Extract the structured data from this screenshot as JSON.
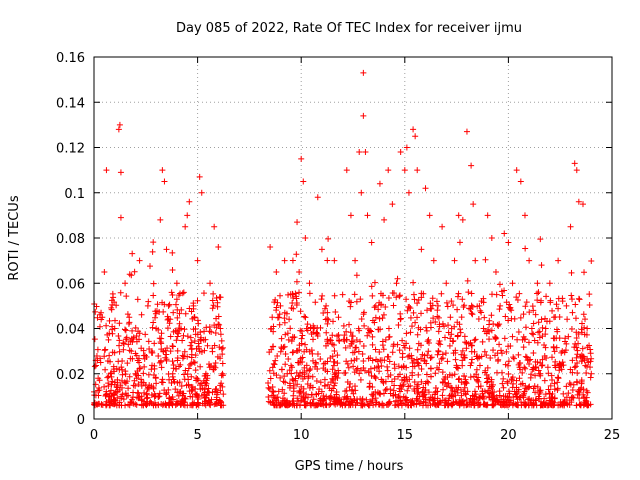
{
  "chart_data": {
    "type": "scatter",
    "title": "Day 085 of 2022, Rate Of TEC Index for receiver ijmu",
    "xlabel": "GPS time / hours",
    "ylabel": "ROTI / TECUs",
    "xlim": [
      0,
      25
    ],
    "ylim": [
      0,
      0.16
    ],
    "xticks": [
      "0",
      "5",
      "10",
      "15",
      "20",
      "25"
    ],
    "yticks": [
      "0",
      "0.02",
      "0.04",
      "0.06",
      "0.08",
      "0.1",
      "0.12",
      "0.14",
      "0.16"
    ],
    "grid": true,
    "legend": "none",
    "marker": "plus",
    "color": "#ff0000",
    "data_gaps_hours": [
      [
        6.25,
        8.4
      ]
    ],
    "series": [
      {
        "x": [
          0.0,
          0.2,
          0.4,
          0.5,
          0.6,
          0.7,
          0.8,
          1.0,
          1.2,
          1.25,
          1.3,
          1.3,
          1.5,
          1.7,
          1.8,
          2.0,
          2.2,
          2.4,
          2.5,
          2.6,
          2.8,
          3.0,
          3.2,
          3.3,
          3.4,
          3.5,
          3.6,
          3.7,
          3.8,
          4.0,
          4.2,
          4.4,
          4.5,
          4.6,
          4.8,
          5.0,
          5.1,
          5.2,
          5.3,
          5.4,
          5.6,
          5.8,
          6.0,
          6.1,
          6.2,
          8.5,
          8.6,
          8.8,
          9.0,
          9.2,
          9.4,
          9.6,
          9.8,
          9.9,
          10.0,
          10.1,
          10.2,
          10.4,
          10.6,
          10.8,
          11.0,
          11.2,
          11.4,
          11.6,
          11.8,
          12.0,
          12.2,
          12.4,
          12.6,
          12.8,
          12.9,
          13.0,
          13.0,
          13.1,
          13.2,
          13.4,
          13.6,
          13.8,
          14.0,
          14.2,
          14.4,
          14.6,
          14.8,
          15.0,
          15.1,
          15.2,
          15.4,
          15.5,
          15.6,
          15.8,
          16.0,
          16.2,
          16.4,
          16.6,
          16.8,
          17.0,
          17.2,
          17.4,
          17.6,
          17.8,
          18.0,
          18.2,
          18.3,
          18.4,
          18.6,
          18.8,
          19.0,
          19.2,
          19.4,
          19.6,
          19.8,
          20.0,
          20.2,
          20.4,
          20.6,
          20.8,
          21.0,
          21.2,
          21.4,
          21.6,
          21.8,
          22.0,
          22.2,
          22.4,
          22.6,
          22.8,
          23.0,
          23.2,
          23.3,
          23.4,
          23.6,
          23.8,
          24.0
        ],
        "y": [
          0.012,
          0.018,
          0.045,
          0.065,
          0.11,
          0.035,
          0.02,
          0.04,
          0.128,
          0.13,
          0.109,
          0.089,
          0.06,
          0.045,
          0.03,
          0.02,
          0.07,
          0.028,
          0.015,
          0.05,
          0.03,
          0.04,
          0.088,
          0.11,
          0.105,
          0.075,
          0.05,
          0.03,
          0.02,
          0.06,
          0.04,
          0.085,
          0.09,
          0.096,
          0.05,
          0.07,
          0.107,
          0.1,
          0.035,
          0.02,
          0.06,
          0.085,
          0.076,
          0.04,
          0.02,
          0.076,
          0.045,
          0.065,
          0.05,
          0.07,
          0.035,
          0.055,
          0.087,
          0.065,
          0.115,
          0.105,
          0.08,
          0.06,
          0.04,
          0.098,
          0.075,
          0.05,
          0.035,
          0.07,
          0.045,
          0.055,
          0.11,
          0.09,
          0.07,
          0.118,
          0.1,
          0.153,
          0.134,
          0.118,
          0.09,
          0.078,
          0.05,
          0.104,
          0.088,
          0.11,
          0.095,
          0.06,
          0.118,
          0.11,
          0.12,
          0.1,
          0.128,
          0.125,
          0.11,
          0.075,
          0.102,
          0.09,
          0.07,
          0.05,
          0.085,
          0.06,
          0.045,
          0.07,
          0.09,
          0.088,
          0.127,
          0.112,
          0.095,
          0.07,
          0.05,
          0.04,
          0.09,
          0.08,
          0.065,
          0.05,
          0.082,
          0.078,
          0.06,
          0.11,
          0.105,
          0.09,
          0.07,
          0.048,
          0.06,
          0.068,
          0.04,
          0.06,
          0.045,
          0.07,
          0.03,
          0.05,
          0.085,
          0.113,
          0.11,
          0.096,
          0.095,
          0.04,
          0.02
        ]
      }
    ]
  }
}
